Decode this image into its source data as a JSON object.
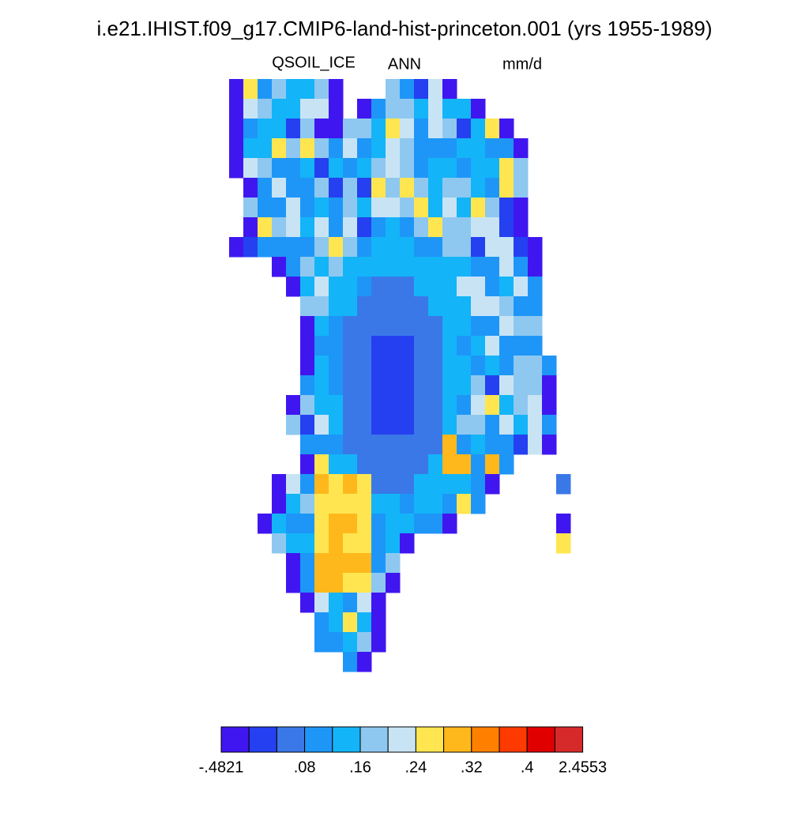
{
  "title": "i.e21.IHIST.f09_g17.CMIP6-land-hist-princeton.001 (yrs 1955-1989)",
  "labels": {
    "variable": "QSOIL_ICE",
    "season": "ANN",
    "units": "mm/d"
  },
  "colorbar": {
    "colors": [
      "#4016f0",
      "#2440f0",
      "#3a78e8",
      "#1e96f8",
      "#14b4f8",
      "#8ec8f0",
      "#c8e4f4",
      "#ffe650",
      "#ffb81c",
      "#ff8000",
      "#ff3a00",
      "#e00000",
      "#d62a2a"
    ],
    "levels": [
      {
        "value": -0.4821,
        "label": "-.4821"
      },
      {
        "value": 0.08,
        "label": ".08"
      },
      {
        "value": 0.16,
        "label": ".16"
      },
      {
        "value": 0.24,
        "label": ".24"
      },
      {
        "value": 0.32,
        "label": ".32"
      },
      {
        "value": 0.4,
        "label": ".4"
      },
      {
        "value": 2.4553,
        "label": "2.4553"
      }
    ]
  }
}
